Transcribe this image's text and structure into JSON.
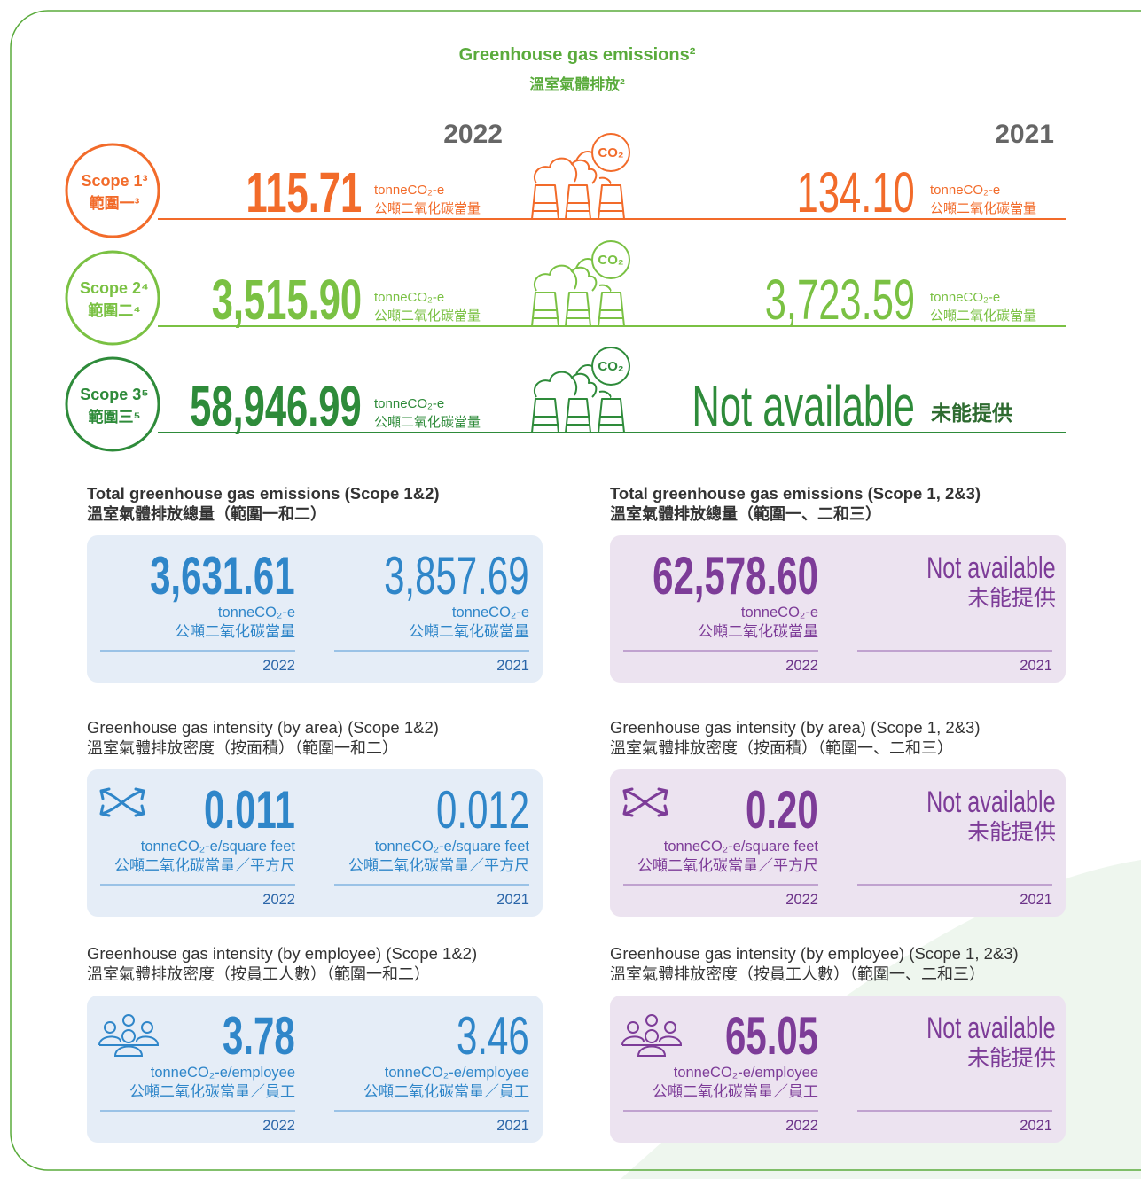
{
  "header": {
    "title": "Greenhouse gas emissions²",
    "title_zh": "溫室氣體排放²"
  },
  "years": [
    "2022",
    "2021"
  ],
  "scopes": [
    {
      "label": "Scope 1³",
      "label_zh": "範圍一³",
      "co2": "CO₂",
      "cells": [
        {
          "value": "115.71",
          "unit": "tonneCO₂-e",
          "unit_zh": "公噸二氧化碳當量"
        },
        {
          "value": "134.10",
          "unit": "tonneCO₂-e",
          "unit_zh": "公噸二氧化碳當量"
        }
      ]
    },
    {
      "label": "Scope 2⁴",
      "label_zh": "範圍二⁴",
      "co2": "CO₂",
      "cells": [
        {
          "value": "3,515.90",
          "unit": "tonneCO₂-e",
          "unit_zh": "公噸二氧化碳當量"
        },
        {
          "value": "3,723.59",
          "unit": "tonneCO₂-e",
          "unit_zh": "公噸二氧化碳當量"
        }
      ]
    },
    {
      "label": "Scope 3⁵",
      "label_zh": "範圍三⁵",
      "co2": "CO₂",
      "cells": [
        {
          "value": "58,946.99",
          "unit": "tonneCO₂-e",
          "unit_zh": "公噸二氧化碳當量"
        },
        {
          "value": "Not available",
          "value_zh": "未能提供"
        }
      ]
    }
  ],
  "panels": [
    {
      "title": "Total greenhouse gas emissions (Scope 1&2)",
      "title_zh": "溫室氣體排放總量（範圍一和二）",
      "cells": [
        {
          "value": "3,631.61",
          "unit": "tonneCO₂-e",
          "unit_zh": "公噸二氧化碳當量",
          "year": "2022"
        },
        {
          "value": "3,857.69",
          "unit": "tonneCO₂-e",
          "unit_zh": "公噸二氧化碳當量",
          "year": "2021"
        }
      ]
    },
    {
      "title": "Total greenhouse gas emissions (Scope 1, 2&3)",
      "title_zh": "溫室氣體排放總量（範圍一、二和三）",
      "cells": [
        {
          "value": "62,578.60",
          "unit": "tonneCO₂-e",
          "unit_zh": "公噸二氧化碳當量",
          "year": "2022"
        },
        {
          "value": "Not available",
          "value_zh": "未能提供",
          "year": "2021"
        }
      ]
    },
    {
      "title": "Greenhouse gas intensity (by area) (Scope 1&2)",
      "title_zh": "溫室氣體排放密度（按面積）（範圍一和二）",
      "cells": [
        {
          "value": "0.011",
          "unit": "tonneCO₂-e/square feet",
          "unit_zh": "公噸二氧化碳當量／平方尺",
          "year": "2022"
        },
        {
          "value": "0.012",
          "unit": "tonneCO₂-e/square feet",
          "unit_zh": "公噸二氧化碳當量／平方尺",
          "year": "2021"
        }
      ]
    },
    {
      "title": "Greenhouse gas intensity (by area) (Scope 1, 2&3)",
      "title_zh": "溫室氣體排放密度（按面積）（範圍一、二和三）",
      "cells": [
        {
          "value": "0.20",
          "unit": "tonneCO₂-e/square feet",
          "unit_zh": "公噸二氧化碳當量／平方尺",
          "year": "2022"
        },
        {
          "value": "Not available",
          "value_zh": "未能提供",
          "year": "2021"
        }
      ]
    },
    {
      "title": "Greenhouse gas intensity (by employee) (Scope 1&2)",
      "title_zh": "溫室氣體排放密度（按員工人數）（範圍一和二）",
      "cells": [
        {
          "value": "3.78",
          "unit": "tonneCO₂-e/employee",
          "unit_zh": "公噸二氧化碳當量／員工",
          "year": "2022"
        },
        {
          "value": "3.46",
          "unit": "tonneCO₂-e/employee",
          "unit_zh": "公噸二氧化碳當量／員工",
          "year": "2021"
        }
      ]
    },
    {
      "title": "Greenhouse gas intensity (by employee) (Scope 1, 2&3)",
      "title_zh": "溫室氣體排放密度（按員工人數）（範圍一、二和三）",
      "cells": [
        {
          "value": "65.05",
          "unit": "tonneCO₂-e/employee",
          "unit_zh": "公噸二氧化碳當量／員工",
          "year": "2022"
        },
        {
          "value": "Not available",
          "value_zh": "未能提供",
          "year": "2021"
        }
      ]
    }
  ]
}
